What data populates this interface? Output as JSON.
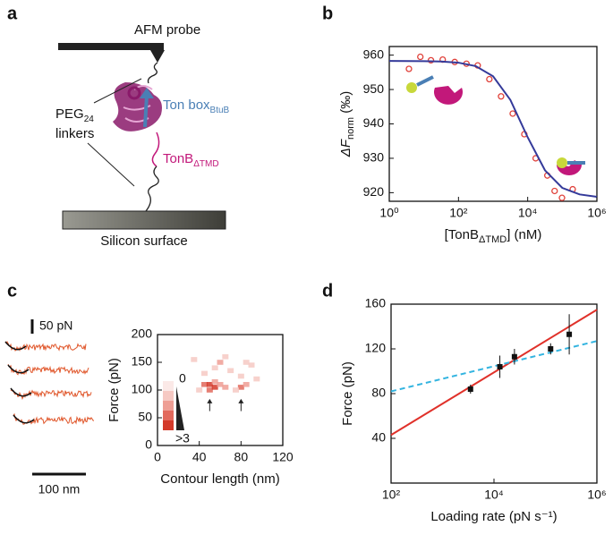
{
  "panel_labels": [
    "a",
    "b",
    "c",
    "d"
  ],
  "diagram": {
    "probe": "AFM probe",
    "linker": "PEG",
    "linker_sub": "24",
    "linker_2": "linkers",
    "tonbox": "Ton box",
    "tonbox_sub": "BtuB",
    "tonb": "TonB",
    "tonb_sub": "ΔTMD",
    "surface": "Silicon surface"
  },
  "traces": {
    "force_scale": "50 pN",
    "length_scale": "100 nm"
  },
  "chart_data": [
    {
      "type": "scatter",
      "x_log": true,
      "xlim": [
        1,
        1000000
      ],
      "xticks": [
        {
          "value": 1,
          "label": "10⁰"
        },
        {
          "value": 100,
          "label": "10²"
        },
        {
          "value": 10000,
          "label": "10⁴"
        },
        {
          "value": 1000000,
          "label": "10⁶"
        }
      ],
      "ylim": [
        917.5,
        962.5
      ],
      "yticks": [
        920,
        930,
        940,
        950,
        960
      ],
      "x_label": [
        "[TonB",
        "ΔTMD",
        "] (nM)"
      ],
      "y_label": [
        "ΔF",
        "norm",
        " (‰)"
      ],
      "series": [
        {
          "kind": "points",
          "color": "#e0413a",
          "x": [
            3.7,
            7.9,
            16,
            35,
            78,
            170,
            360,
            780,
            1700,
            3700,
            8000,
            17000,
            37000,
            60000,
            98000,
            200000
          ],
          "values": [
            956,
            959.5,
            958.5,
            958.7,
            958,
            957.5,
            957,
            953,
            948,
            943,
            937,
            930,
            925,
            920.5,
            918.5,
            921
          ]
        },
        {
          "kind": "line",
          "color": "#343a9a",
          "x": [
            1,
            3.16,
            10,
            31.6,
            100,
            316,
            1000,
            3162,
            10000,
            31623,
            100000,
            316228,
            1000000
          ],
          "values": [
            958.3,
            958.28,
            958.25,
            958.14,
            957.8,
            956.8,
            953.85,
            946.97,
            936.1,
            926.5,
            921.4,
            919.5,
            918.8
          ]
        }
      ]
    },
    {
      "type": "heatmap",
      "xlim": [
        0,
        120
      ],
      "xticks": [
        0,
        40,
        80,
        120
      ],
      "ylim": [
        0,
        200
      ],
      "yticks": [
        0,
        50,
        100,
        150,
        200
      ],
      "x_label": "Contour length (nm)",
      "y_label": "Force (pN)",
      "colorbar_labels": [
        "0",
        ">3"
      ],
      "colors": [
        "#fbe9e7",
        "#f6c9c3",
        "#ee9e94",
        "#e2695c",
        "#d33a2a"
      ],
      "cells": {
        "x": [
          45,
          50,
          50,
          55,
          55,
          60,
          40,
          65,
          80,
          85,
          75,
          70,
          60,
          55,
          90,
          35,
          80,
          95,
          65,
          45,
          85
        ],
        "y": [
          110,
          110,
          100,
          105,
          115,
          110,
          100,
          105,
          105,
          110,
          100,
          135,
          150,
          140,
          145,
          155,
          125,
          120,
          160,
          130,
          150
        ],
        "values": [
          3,
          4,
          3,
          4,
          2,
          2,
          1,
          2,
          3,
          2,
          1,
          1,
          2,
          1,
          1,
          1,
          1,
          1,
          1,
          1,
          1
        ]
      }
    },
    {
      "type": "scatter",
      "x_log": true,
      "xlim": [
        100,
        1000000
      ],
      "xticks": [
        {
          "value": 100,
          "label": "10²"
        },
        {
          "value": 10000,
          "label": "10⁴"
        },
        {
          "value": 1000000,
          "label": "10⁶"
        }
      ],
      "ylim": [
        0,
        160
      ],
      "yticks": [
        40,
        80,
        120,
        160
      ],
      "x_label": [
        "Loading rate (pN s⁻¹)"
      ],
      "y_label": [
        "Force (pN)"
      ],
      "series": [
        {
          "kind": "line",
          "color": "#e0312a",
          "x": [
            100,
            1000000
          ],
          "values": [
            43,
            155
          ]
        },
        {
          "kind": "line",
          "color": "#33b4e0",
          "dashed": true,
          "x": [
            100,
            1000000
          ],
          "values": [
            82,
            127
          ]
        },
        {
          "kind": "points",
          "color": "#111111",
          "x": [
            3500,
            13000,
            25000,
            126000,
            290000
          ],
          "values": [
            84,
            104,
            113,
            120,
            133
          ],
          "errors": [
            4,
            10,
            7,
            5,
            18
          ]
        }
      ]
    }
  ]
}
